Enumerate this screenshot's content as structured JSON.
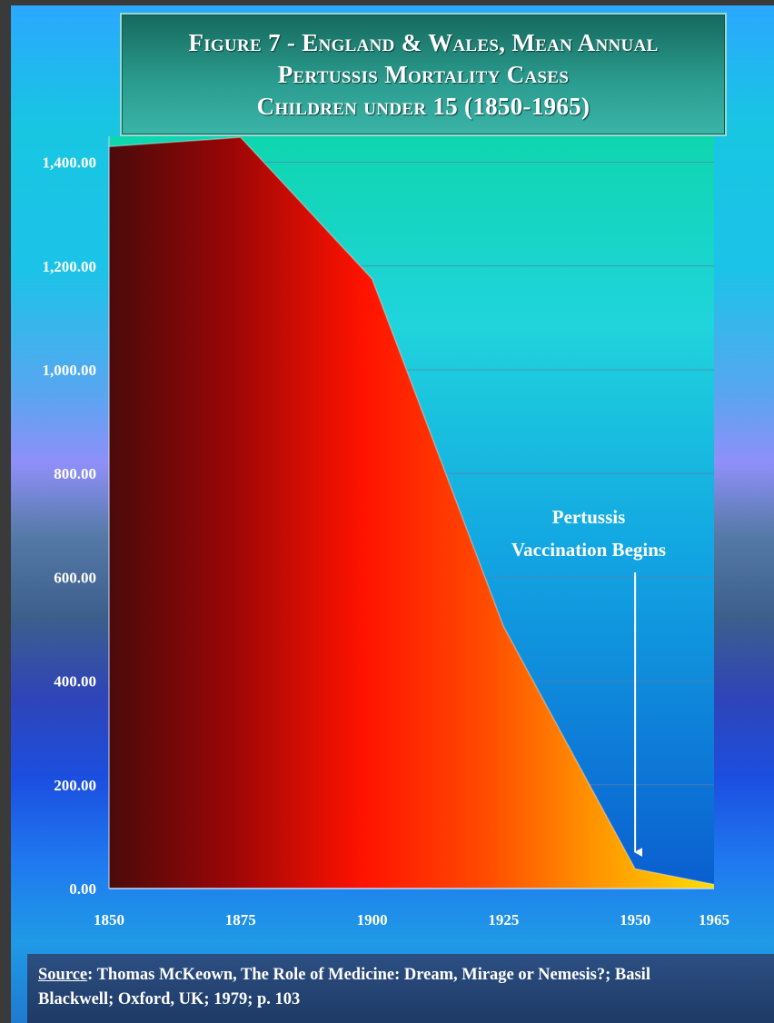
{
  "title": {
    "line1": "Figure 7 - England & Wales,  Mean Annual",
    "line2": "Pertussis Mortality Cases",
    "line3": "Children under 15 (1850-1965)"
  },
  "annotation": {
    "line1": "Pertussis",
    "line2": "Vaccination Begins",
    "arrow_x": 1950
  },
  "source": {
    "label": "Source",
    "line1_text": ":  Thomas McKeown, The Role of Medicine: Dream, Mirage or Nemesis?; Basil",
    "line2": "Blackwell; Oxford, UK; 1979; p. 103"
  },
  "chart_data": {
    "type": "area",
    "title": "Figure 7 - England & Wales, Mean Annual Pertussis Mortality Cases Children under 15 (1850-1965)",
    "xlabel": "",
    "ylabel": "",
    "x": [
      1850,
      1875,
      1900,
      1925,
      1950,
      1965
    ],
    "series": [
      {
        "values": [
          1430,
          1448,
          1175,
          505,
          38,
          8
        ]
      }
    ],
    "x_ticks": [
      1850,
      1875,
      1900,
      1925,
      1950,
      1965
    ],
    "x_tick_labels": [
      "1850",
      "1875",
      "1900",
      "1925",
      "1950",
      "1965"
    ],
    "y_ticks": [
      0,
      200,
      400,
      600,
      800,
      1000,
      1200,
      1400
    ],
    "y_tick_labels": [
      "0.00",
      "200.00",
      "400.00",
      "600.00",
      "800.00",
      "1,000.00",
      "1,200.00",
      "1,400.00"
    ],
    "ylim": [
      0,
      1400
    ],
    "grid": true,
    "legend": "none",
    "colors": {
      "area_start": "#4a0a0a",
      "area_mid": "#ff1a00",
      "area_end": "#ffd400",
      "plot_top": "#0fd8b0",
      "plot_bottom": "#0a5fc8",
      "grid": "#5a7fa8"
    }
  }
}
